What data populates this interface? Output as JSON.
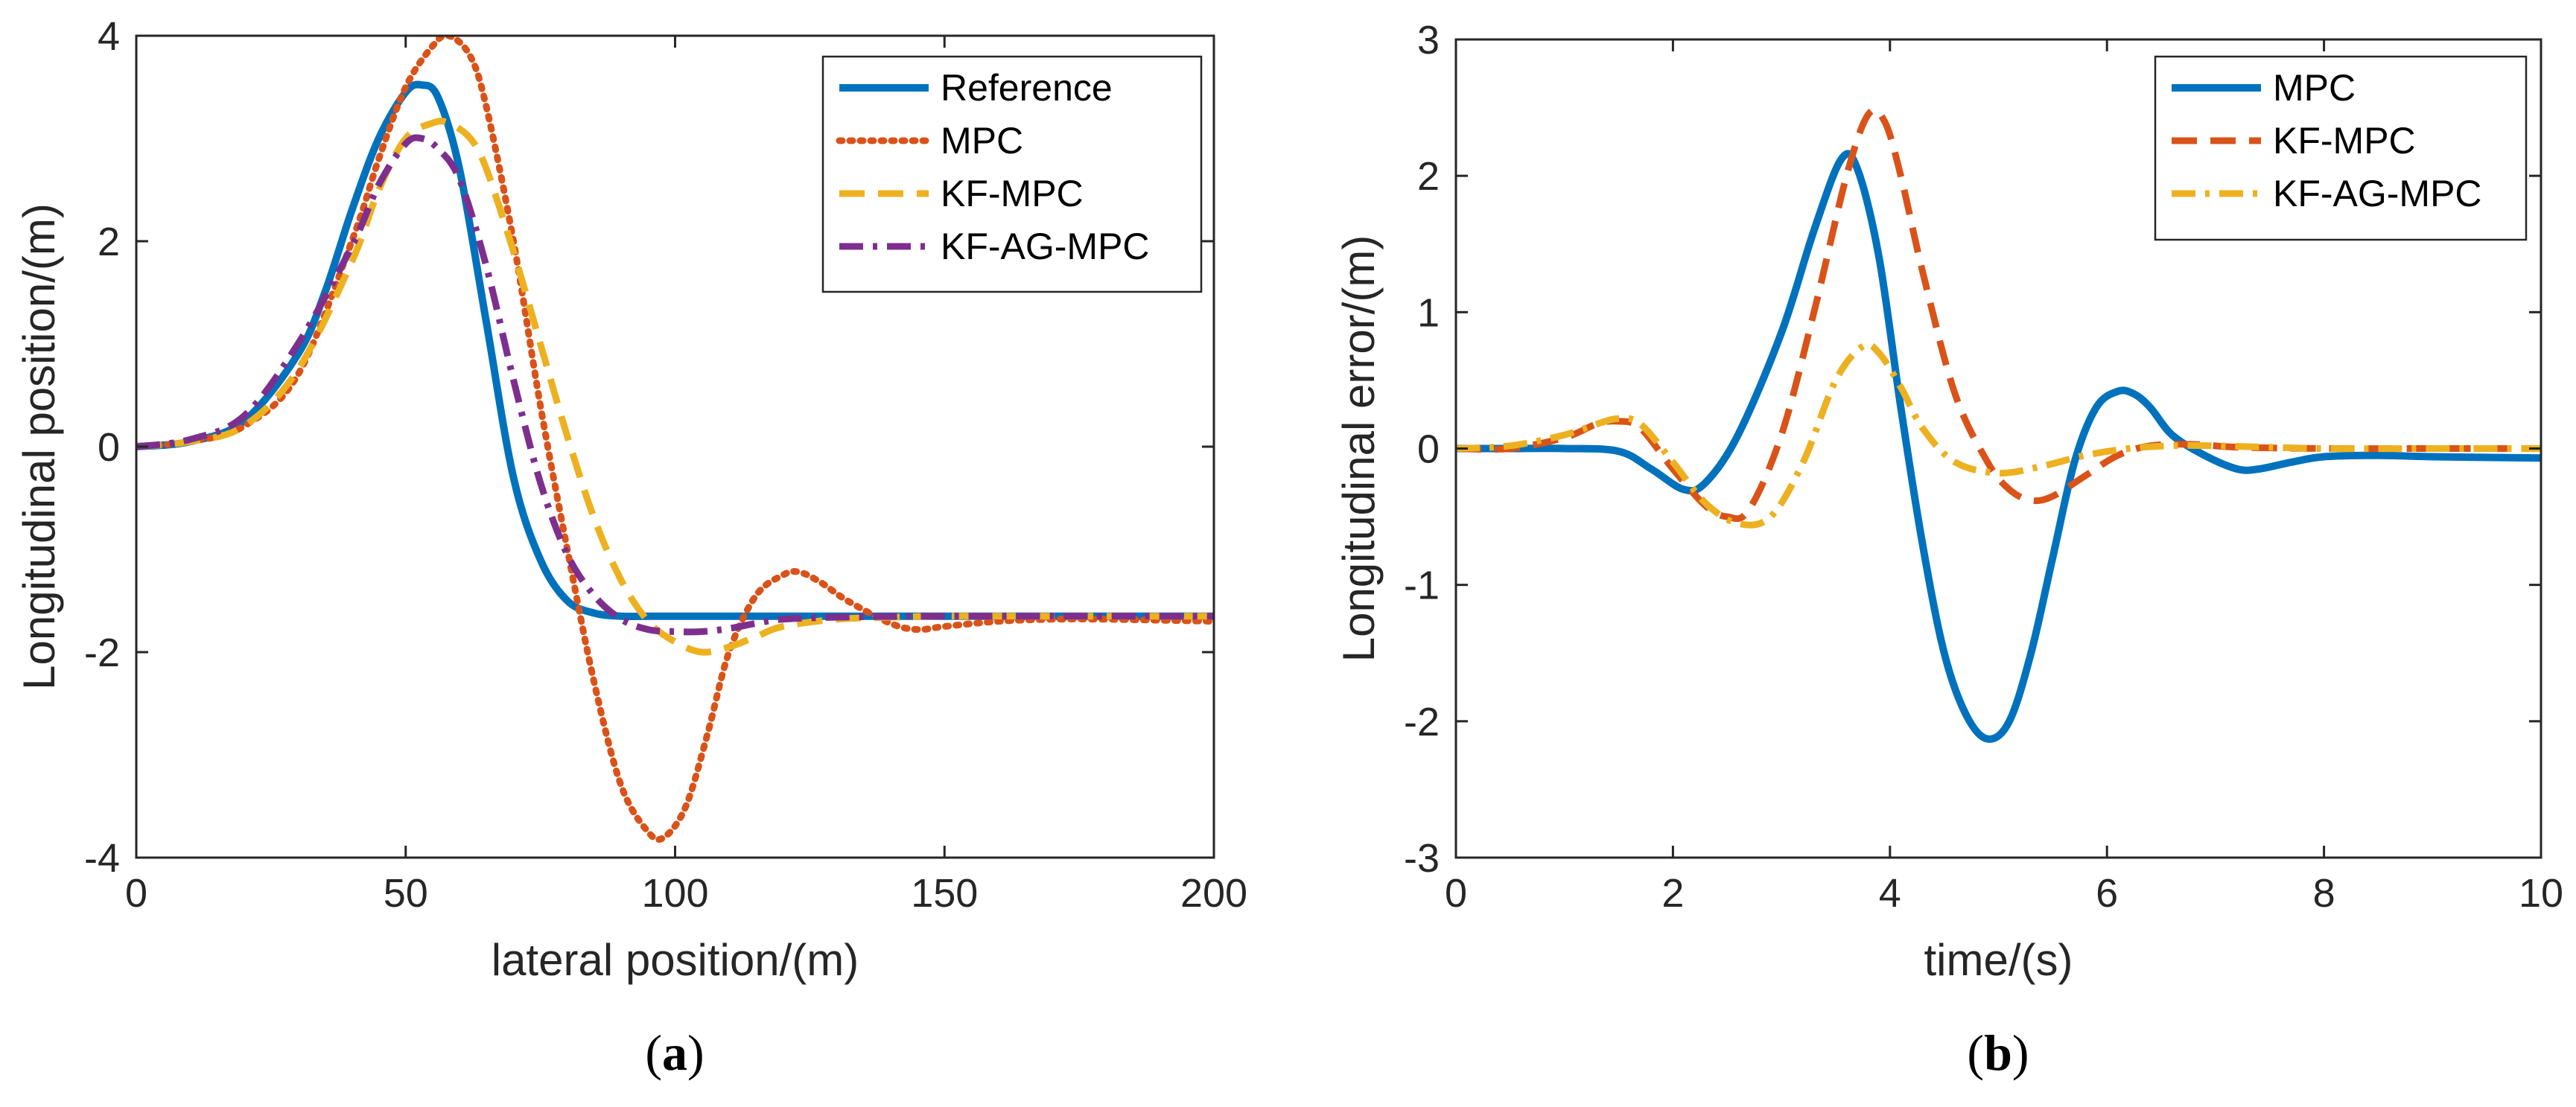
{
  "chart_data": [
    {
      "type": "line",
      "panel_label": "(a)",
      "panel_letter": "a",
      "xlabel": "lateral position/(m)",
      "ylabel": "Longitudinal position/(m)",
      "xlim": [
        0,
        200
      ],
      "ylim": [
        -4,
        4
      ],
      "xticks": [
        0,
        50,
        100,
        150,
        200
      ],
      "yticks": [
        -4,
        -2,
        0,
        2,
        4
      ],
      "grid": false,
      "legend_position": "top-right",
      "series": [
        {
          "name": "Reference",
          "color": "#0072BD",
          "dash": "solid",
          "x": [
            0,
            10,
            20,
            30,
            35,
            40,
            45,
            50,
            53,
            56,
            60,
            65,
            70,
            75,
            80,
            85,
            90,
            95,
            100,
            120,
            150,
            200
          ],
          "y": [
            0,
            0.05,
            0.25,
            0.9,
            1.5,
            2.3,
            3.0,
            3.45,
            3.52,
            3.4,
            2.7,
            1.2,
            -0.3,
            -1.1,
            -1.5,
            -1.62,
            -1.65,
            -1.65,
            -1.65,
            -1.65,
            -1.65,
            -1.65
          ]
        },
        {
          "name": "MPC",
          "color": "#D95319",
          "dash": "dotted",
          "x": [
            0,
            10,
            20,
            30,
            40,
            45,
            50,
            55,
            58,
            62,
            65,
            70,
            75,
            80,
            85,
            90,
            95,
            98,
            102,
            106,
            110,
            115,
            120,
            123,
            127,
            132,
            140,
            145,
            150,
            160,
            170,
            180,
            200
          ],
          "y": [
            0,
            0.05,
            0.2,
            0.7,
            2.0,
            2.8,
            3.5,
            3.9,
            4.0,
            3.8,
            3.3,
            2.0,
            0.4,
            -1.0,
            -2.3,
            -3.3,
            -3.75,
            -3.8,
            -3.5,
            -2.8,
            -2.0,
            -1.45,
            -1.25,
            -1.22,
            -1.32,
            -1.5,
            -1.72,
            -1.78,
            -1.75,
            -1.7,
            -1.68,
            -1.68,
            -1.7
          ]
        },
        {
          "name": "KF-MPC",
          "color": "#EDB120",
          "dash": "dashed",
          "x": [
            0,
            10,
            20,
            30,
            40,
            45,
            50,
            55,
            58,
            62,
            65,
            70,
            75,
            80,
            85,
            90,
            95,
            100,
            105,
            110,
            115,
            120,
            130,
            140,
            150,
            170,
            200
          ],
          "y": [
            0,
            0.05,
            0.2,
            0.75,
            1.8,
            2.5,
            3.0,
            3.15,
            3.15,
            3.0,
            2.7,
            1.9,
            1.0,
            0.1,
            -0.7,
            -1.3,
            -1.7,
            -1.9,
            -2.0,
            -1.95,
            -1.85,
            -1.75,
            -1.68,
            -1.66,
            -1.65,
            -1.65,
            -1.65
          ]
        },
        {
          "name": "KF-AG-MPC",
          "color": "#7E2F8E",
          "dash": "dashdot",
          "x": [
            0,
            10,
            20,
            30,
            40,
            45,
            50,
            53,
            56,
            60,
            65,
            70,
            75,
            80,
            85,
            90,
            95,
            100,
            105,
            110,
            115,
            120,
            130,
            150,
            200
          ],
          "y": [
            0,
            0.07,
            0.3,
            1.0,
            1.95,
            2.55,
            2.95,
            3.0,
            2.9,
            2.6,
            1.75,
            0.65,
            -0.35,
            -1.05,
            -1.45,
            -1.68,
            -1.78,
            -1.8,
            -1.8,
            -1.77,
            -1.72,
            -1.68,
            -1.66,
            -1.65,
            -1.65
          ]
        }
      ]
    },
    {
      "type": "line",
      "panel_label": "(b)",
      "panel_letter": "b",
      "xlabel": "time/(s)",
      "ylabel": "Longitudinal error/(m)",
      "xlim": [
        0,
        10
      ],
      "ylim": [
        -3,
        3
      ],
      "xticks": [
        0,
        2,
        4,
        6,
        8,
        10
      ],
      "yticks": [
        -3,
        -2,
        -1,
        0,
        1,
        2,
        3
      ],
      "grid": false,
      "legend_position": "top-right",
      "series": [
        {
          "name": "MPC",
          "color": "#0072BD",
          "dash": "solid",
          "x": [
            0,
            0.5,
            1.0,
            1.5,
            1.8,
            2.1,
            2.3,
            2.6,
            3.0,
            3.3,
            3.55,
            3.7,
            3.9,
            4.1,
            4.3,
            4.5,
            4.7,
            4.9,
            5.1,
            5.3,
            5.5,
            5.7,
            5.9,
            6.1,
            6.25,
            6.4,
            6.6,
            6.9,
            7.2,
            7.4,
            7.7,
            8.0,
            8.5,
            9.0,
            10
          ],
          "y": [
            0,
            0,
            0,
            -0.02,
            -0.15,
            -0.3,
            -0.25,
            0.1,
            0.85,
            1.6,
            2.12,
            2.05,
            1.4,
            0.3,
            -0.7,
            -1.5,
            -1.95,
            -2.13,
            -2.0,
            -1.5,
            -0.8,
            -0.1,
            0.3,
            0.42,
            0.4,
            0.3,
            0.1,
            -0.05,
            -0.15,
            -0.15,
            -0.1,
            -0.06,
            -0.05,
            -0.06,
            -0.07
          ]
        },
        {
          "name": "KF-MPC",
          "color": "#D95319",
          "dash": "dashed",
          "x": [
            0,
            0.5,
            1.0,
            1.3,
            1.5,
            1.7,
            2.0,
            2.3,
            2.5,
            2.7,
            3.0,
            3.3,
            3.6,
            3.8,
            3.95,
            4.1,
            4.3,
            4.6,
            4.9,
            5.1,
            5.3,
            5.5,
            5.8,
            6.1,
            6.4,
            6.8,
            7.2,
            8,
            9,
            10
          ],
          "y": [
            0,
            0,
            0.08,
            0.18,
            0.2,
            0.15,
            -0.15,
            -0.42,
            -0.5,
            -0.45,
            0.1,
            1.0,
            2.0,
            2.45,
            2.4,
            2.0,
            1.3,
            0.4,
            -0.1,
            -0.3,
            -0.38,
            -0.35,
            -0.2,
            -0.05,
            0.02,
            0.03,
            0.01,
            0,
            0,
            0
          ]
        },
        {
          "name": "KF-AG-MPC",
          "color": "#EDB120",
          "dash": "dashdot",
          "x": [
            0,
            0.5,
            1.0,
            1.3,
            1.5,
            1.7,
            2.0,
            2.3,
            2.6,
            2.9,
            3.2,
            3.5,
            3.75,
            3.9,
            4.1,
            4.3,
            4.6,
            5.0,
            5.4,
            5.8,
            6.2,
            6.6,
            7.0,
            8,
            9,
            10
          ],
          "y": [
            0,
            0.02,
            0.1,
            0.18,
            0.22,
            0.18,
            -0.1,
            -0.4,
            -0.55,
            -0.5,
            -0.1,
            0.5,
            0.75,
            0.7,
            0.45,
            0.15,
            -0.1,
            -0.18,
            -0.13,
            -0.05,
            0,
            0.02,
            0.02,
            0,
            0,
            0
          ]
        }
      ]
    }
  ]
}
